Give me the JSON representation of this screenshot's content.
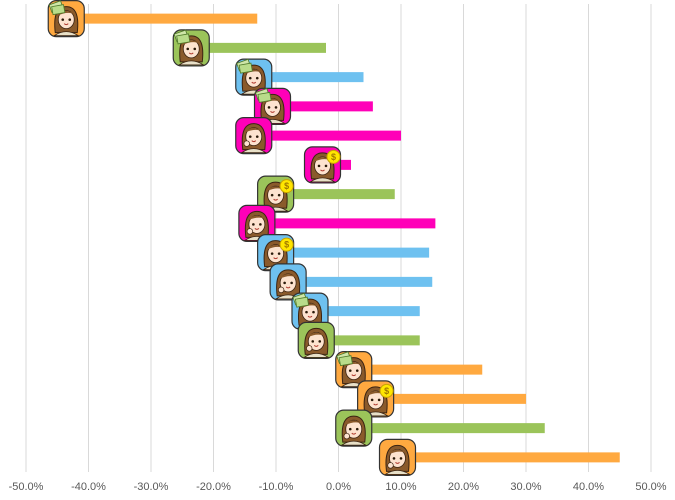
{
  "chart_data": {
    "type": "bar",
    "orientation": "horizontal",
    "title": "",
    "xlabel": "",
    "ylabel": "",
    "xlim": [
      -0.5,
      0.5
    ],
    "x_ticks": [
      "-50.0%",
      "-40.0%",
      "-30.0%",
      "-20.0%",
      "-10.0%",
      "0.0%",
      "10.0%",
      "20.0%",
      "30.0%",
      "40.0%",
      "50.0%"
    ],
    "x_tick_values": [
      -0.5,
      -0.4,
      -0.3,
      -0.2,
      -0.1,
      0.0,
      0.1,
      0.2,
      0.3,
      0.4,
      0.5
    ],
    "grid": "vertical",
    "legend": "none",
    "bars": [
      {
        "start": -0.41,
        "end": -0.13,
        "color": "#FFA940",
        "icon": "woman-holding-cash-icon"
      },
      {
        "start": -0.21,
        "end": -0.02,
        "color": "#9BC45A",
        "icon": "woman-holding-cash-icon"
      },
      {
        "start": -0.11,
        "end": 0.04,
        "color": "#6EC1F0",
        "icon": "woman-holding-cash-icon"
      },
      {
        "start": -0.08,
        "end": 0.055,
        "color": "#FF00B8",
        "icon": "woman-holding-cash-icon"
      },
      {
        "start": -0.11,
        "end": 0.1,
        "color": "#FF00B8",
        "icon": "woman-thinking-icon"
      },
      {
        "start": 0.0,
        "end": 0.02,
        "color": "#FF00B8",
        "icon": "woman-with-coin-icon"
      },
      {
        "start": -0.075,
        "end": 0.09,
        "color": "#9BC45A",
        "icon": "woman-with-coin-icon"
      },
      {
        "start": -0.105,
        "end": 0.155,
        "color": "#FF00B8",
        "icon": "woman-thinking-icon"
      },
      {
        "start": -0.075,
        "end": 0.145,
        "color": "#6EC1F0",
        "icon": "woman-with-coin-icon"
      },
      {
        "start": -0.055,
        "end": 0.15,
        "color": "#6EC1F0",
        "icon": "woman-thinking-icon"
      },
      {
        "start": -0.02,
        "end": 0.13,
        "color": "#6EC1F0",
        "icon": "woman-holding-cash-icon"
      },
      {
        "start": -0.01,
        "end": 0.13,
        "color": "#9BC45A",
        "icon": "woman-thinking-icon"
      },
      {
        "start": 0.05,
        "end": 0.23,
        "color": "#FFA940",
        "icon": "woman-holding-cash-icon"
      },
      {
        "start": 0.085,
        "end": 0.3,
        "color": "#FFA940",
        "icon": "woman-with-coin-icon"
      },
      {
        "start": 0.05,
        "end": 0.33,
        "color": "#9BC45A",
        "icon": "woman-thinking-icon"
      },
      {
        "start": 0.12,
        "end": 0.45,
        "color": "#FFA940",
        "icon": "woman-thinking-icon"
      }
    ]
  }
}
